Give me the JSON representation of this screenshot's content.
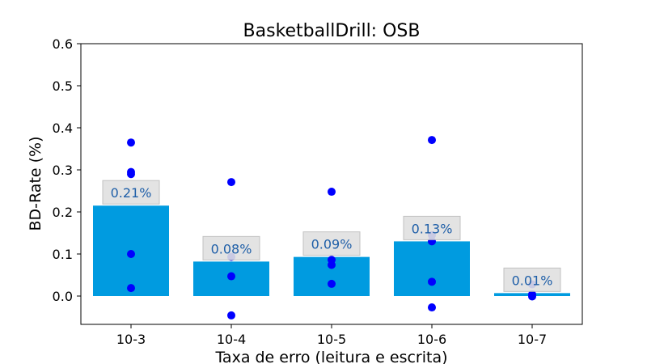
{
  "chart_data": {
    "type": "bar",
    "title": "BasketballDrill: OSB",
    "xlabel": "Taxa de erro (leitura e escrita)",
    "ylabel": "BD-Rate (%)",
    "categories": [
      "10-3",
      "10-4",
      "10-5",
      "10-6",
      "10-7"
    ],
    "values": [
      0.215,
      0.082,
      0.093,
      0.13,
      0.007
    ],
    "value_labels": [
      "0.21%",
      "0.08%",
      "0.09%",
      "0.13%",
      "0.01%"
    ],
    "points": [
      [
        0.365,
        0.295,
        0.29,
        0.1,
        0.019
      ],
      [
        0.271,
        0.093,
        0.047,
        -0.046
      ],
      [
        0.248,
        0.086,
        0.074,
        0.029
      ],
      [
        0.371,
        0.145,
        0.13,
        0.034,
        -0.027
      ],
      [
        0.028,
        0.004,
        -0.001
      ]
    ],
    "ylim": [
      -0.068,
      0.6
    ],
    "yticks": [
      "0.0",
      "0.1",
      "0.2",
      "0.3",
      "0.4",
      "0.5",
      "0.6"
    ],
    "grid": false,
    "colors": {
      "bar": "#009be0",
      "point": "#0000ff",
      "label_text": "#1f5fa8",
      "label_box": "#e0e0e0",
      "label_box_edge": "#bcbcbc"
    }
  }
}
